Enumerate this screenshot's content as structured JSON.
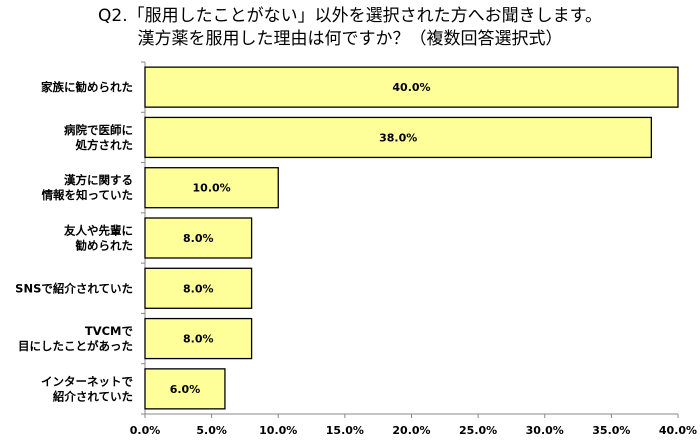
{
  "title_lines": [
    "Q2.「服用したことがない」以外を選択された方へお聞きします。",
    "漢方薬を服用した理由は何ですか？（複数回答選択式）"
  ],
  "chart_data": {
    "type": "bar",
    "orientation": "horizontal",
    "categories": [
      [
        "家族に勧められた"
      ],
      [
        "病院で医師に",
        "処方された"
      ],
      [
        "漢方に関する",
        "情報を知っていた"
      ],
      [
        "友人や先輩に",
        "勧められた"
      ],
      [
        "SNSで紹介されていた"
      ],
      [
        "TVCMで",
        "目にしたことがあった"
      ],
      [
        "インターネットで",
        "紹介されていた"
      ]
    ],
    "values": [
      40.0,
      38.0,
      10.0,
      8.0,
      8.0,
      8.0,
      6.0
    ],
    "data_labels": [
      "40.0%",
      "38.0%",
      "10.0%",
      "8.0%",
      "8.0%",
      "8.0%",
      "6.0%"
    ],
    "xlim": [
      0,
      40
    ],
    "xticks": [
      0,
      5,
      10,
      15,
      20,
      25,
      30,
      35,
      40
    ],
    "xtick_labels": [
      "0.0%",
      "5.0%",
      "10.0%",
      "15.0%",
      "20.0%",
      "25.0%",
      "30.0%",
      "35.0%",
      "40.0%"
    ],
    "grid": false,
    "legend": "none",
    "colors": {
      "bar_fill": "#FFFF99",
      "bar_stroke": "#000000",
      "axis": "#888888"
    }
  }
}
